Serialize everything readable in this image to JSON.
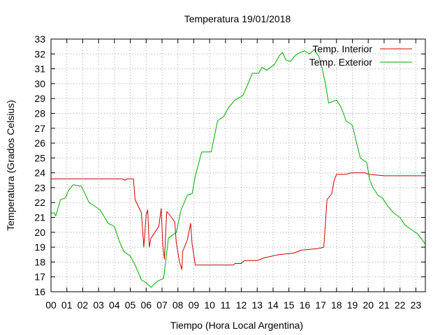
{
  "chart_data": {
    "type": "line",
    "title": "Temperatura 19/01/2018",
    "xlabel": "Tiempo (Hora Local Argentina)",
    "ylabel": "Temperatura (Grados Celsius)",
    "xlim": [
      0,
      23.6
    ],
    "ylim": [
      16,
      33
    ],
    "grid": true,
    "legend_position": "top-right",
    "x_ticks": [
      "00",
      "01",
      "02",
      "03",
      "04",
      "05",
      "06",
      "07",
      "08",
      "09",
      "10",
      "11",
      "12",
      "13",
      "14",
      "15",
      "16",
      "17",
      "18",
      "19",
      "20",
      "21",
      "22",
      "23"
    ],
    "y_ticks": [
      16,
      17,
      18,
      19,
      20,
      21,
      22,
      23,
      24,
      25,
      26,
      27,
      28,
      29,
      30,
      31,
      32,
      33
    ],
    "series": [
      {
        "name": "Temp. Interior",
        "color": "#cc0000",
        "points": [
          [
            0.0,
            23.6
          ],
          [
            4.5,
            23.6
          ],
          [
            4.65,
            23.5
          ],
          [
            4.8,
            23.6
          ],
          [
            5.2,
            23.6
          ],
          [
            5.3,
            22.2
          ],
          [
            5.7,
            21.3
          ],
          [
            5.85,
            19.0
          ],
          [
            6.0,
            21.2
          ],
          [
            6.1,
            21.5
          ],
          [
            6.2,
            19.0
          ],
          [
            6.3,
            19.6
          ],
          [
            6.8,
            20.4
          ],
          [
            6.95,
            21.6
          ],
          [
            7.05,
            19.1
          ],
          [
            7.15,
            18.2
          ],
          [
            7.3,
            21.4
          ],
          [
            7.6,
            21.0
          ],
          [
            7.8,
            20.7
          ],
          [
            7.9,
            19.3
          ],
          [
            8.1,
            18.0
          ],
          [
            8.25,
            17.5
          ],
          [
            8.3,
            18.7
          ],
          [
            8.6,
            19.5
          ],
          [
            8.8,
            20.6
          ],
          [
            8.9,
            19.2
          ],
          [
            9.1,
            17.8
          ],
          [
            11.5,
            17.8
          ],
          [
            11.6,
            17.9
          ],
          [
            12.0,
            17.9
          ],
          [
            12.2,
            18.1
          ],
          [
            13.0,
            18.1
          ],
          [
            13.5,
            18.3
          ],
          [
            14.4,
            18.5
          ],
          [
            15.3,
            18.6
          ],
          [
            15.8,
            18.8
          ],
          [
            16.8,
            18.9
          ],
          [
            17.2,
            19.0
          ],
          [
            17.4,
            22.2
          ],
          [
            17.7,
            22.6
          ],
          [
            17.85,
            23.5
          ],
          [
            18.0,
            23.9
          ],
          [
            18.6,
            23.9
          ],
          [
            18.9,
            24.0
          ],
          [
            19.8,
            24.0
          ],
          [
            20.0,
            23.9
          ],
          [
            21.0,
            23.8
          ],
          [
            23.6,
            23.8
          ]
        ]
      },
      {
        "name": "Temp. Exterior",
        "color": "#00aa00",
        "points": [
          [
            0.0,
            21.3
          ],
          [
            0.2,
            21.3
          ],
          [
            0.3,
            21.1
          ],
          [
            0.6,
            22.2
          ],
          [
            0.9,
            22.3
          ],
          [
            1.1,
            22.8
          ],
          [
            1.4,
            23.2
          ],
          [
            1.9,
            23.1
          ],
          [
            2.1,
            22.7
          ],
          [
            2.4,
            22.0
          ],
          [
            2.7,
            21.8
          ],
          [
            3.1,
            21.5
          ],
          [
            3.6,
            20.6
          ],
          [
            4.0,
            20.4
          ],
          [
            4.3,
            19.4
          ],
          [
            4.6,
            18.7
          ],
          [
            5.0,
            18.4
          ],
          [
            5.3,
            17.8
          ],
          [
            5.7,
            16.8
          ],
          [
            6.0,
            16.6
          ],
          [
            6.3,
            16.3
          ],
          [
            6.7,
            16.7
          ],
          [
            7.1,
            16.9
          ],
          [
            7.4,
            19.6
          ],
          [
            7.9,
            20.0
          ],
          [
            8.2,
            21.5
          ],
          [
            8.6,
            22.5
          ],
          [
            8.9,
            22.6
          ],
          [
            9.1,
            23.8
          ],
          [
            9.5,
            25.4
          ],
          [
            10.1,
            25.4
          ],
          [
            10.5,
            27.5
          ],
          [
            10.9,
            27.8
          ],
          [
            11.2,
            28.4
          ],
          [
            11.6,
            28.9
          ],
          [
            12.1,
            29.2
          ],
          [
            12.3,
            29.7
          ],
          [
            12.7,
            30.7
          ],
          [
            13.1,
            30.7
          ],
          [
            13.3,
            31.1
          ],
          [
            13.6,
            30.9
          ],
          [
            14.1,
            31.3
          ],
          [
            14.4,
            31.9
          ],
          [
            14.6,
            32.1
          ],
          [
            14.8,
            31.6
          ],
          [
            15.1,
            31.5
          ],
          [
            15.4,
            31.9
          ],
          [
            15.7,
            32.1
          ],
          [
            16.0,
            32.2
          ],
          [
            16.3,
            32.0
          ],
          [
            16.6,
            32.3
          ],
          [
            16.9,
            31.8
          ],
          [
            17.1,
            31.0
          ],
          [
            17.3,
            30.0
          ],
          [
            17.5,
            28.7
          ],
          [
            18.0,
            28.9
          ],
          [
            18.3,
            28.4
          ],
          [
            18.6,
            27.5
          ],
          [
            19.0,
            27.2
          ],
          [
            19.2,
            26.3
          ],
          [
            19.5,
            25.0
          ],
          [
            19.9,
            24.7
          ],
          [
            20.1,
            23.5
          ],
          [
            20.3,
            23.0
          ],
          [
            20.6,
            22.5
          ],
          [
            20.9,
            22.3
          ],
          [
            21.2,
            21.8
          ],
          [
            21.6,
            21.3
          ],
          [
            22.0,
            21.0
          ],
          [
            22.3,
            20.5
          ],
          [
            22.7,
            20.2
          ],
          [
            23.1,
            19.9
          ],
          [
            23.4,
            19.5
          ],
          [
            23.6,
            19.2
          ]
        ]
      }
    ]
  }
}
